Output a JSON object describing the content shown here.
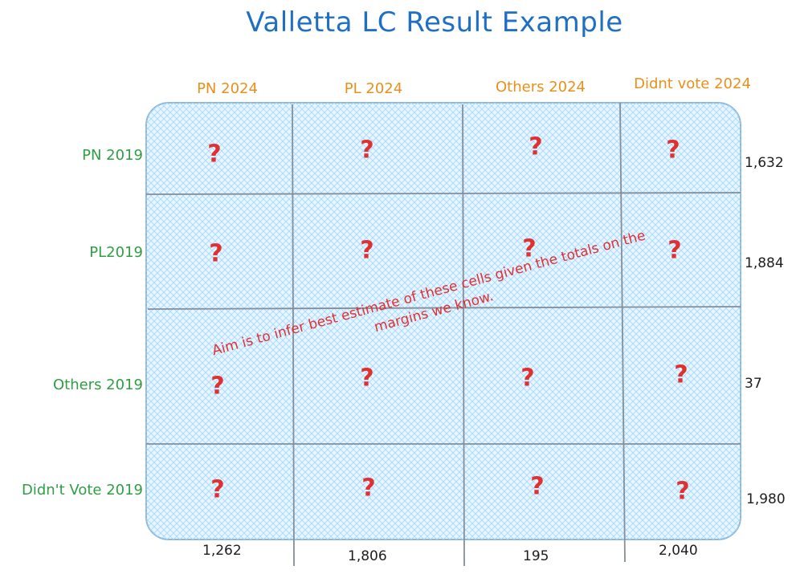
{
  "title": "Valletta LC Result Example",
  "columns": [
    {
      "label": "PN 2024",
      "total": "1,262"
    },
    {
      "label": "PL 2024",
      "total": "1,806"
    },
    {
      "label": "Others 2024",
      "total": "195"
    },
    {
      "label": "Didnt vote 2024",
      "total": "2,040"
    }
  ],
  "rows": [
    {
      "label": "PN 2019",
      "total": "1,632"
    },
    {
      "label": "PL2019",
      "total": "1,884"
    },
    {
      "label": "Others 2019",
      "total": "37"
    },
    {
      "label": "Didn't Vote 2019",
      "total": "1,980"
    }
  ],
  "cell_mark": "?",
  "annotation": "Aim is to infer best estimate of these cells given the totals on the margins we know.",
  "colors": {
    "title": "#1f6fc5",
    "column_labels": "#e8901c",
    "row_labels": "#2f9e44",
    "unknown_marks": "#e03131",
    "annotation": "#e03131",
    "table_fill": "#a5d8ff",
    "table_border": "#8fb8de",
    "grid_lines": "#868e96"
  }
}
